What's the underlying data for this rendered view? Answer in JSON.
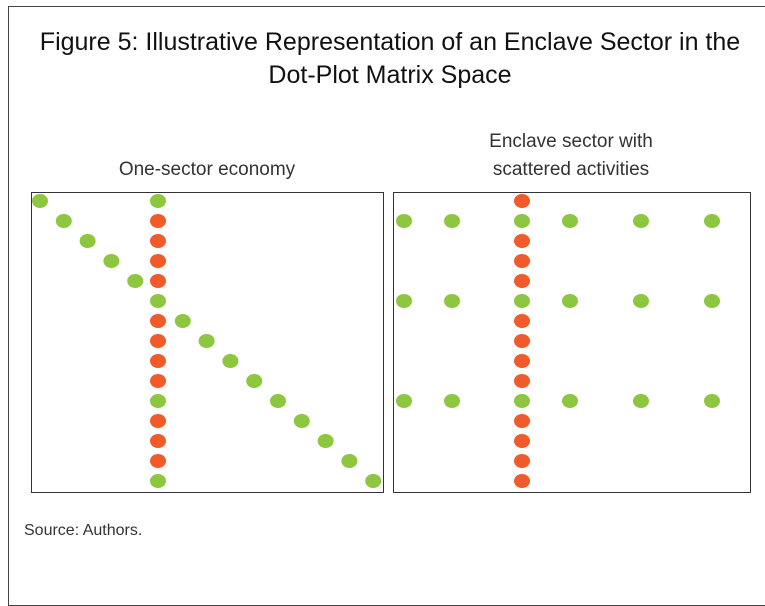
{
  "title": "Figure 5: Illustrative Representation of an Enclave Sector in the Dot-Plot Matrix Space",
  "panels": [
    {
      "title": "One-sector economy"
    },
    {
      "title": "Enclave sector with scattered activities"
    }
  ],
  "source": "Source: Authors."
}
